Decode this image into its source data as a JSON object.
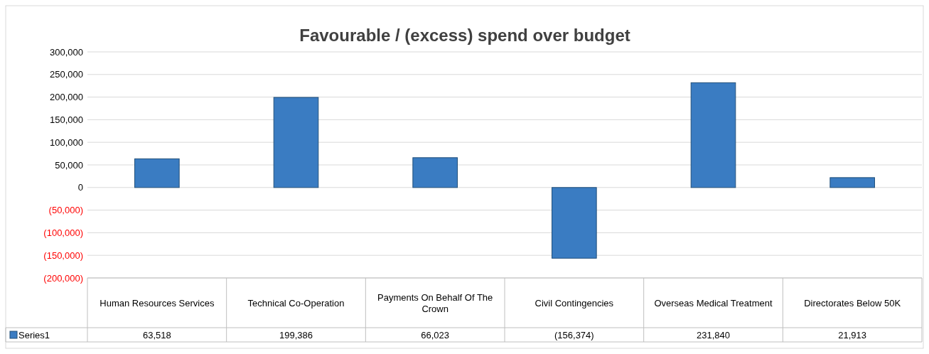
{
  "chart_data": {
    "type": "bar",
    "title": "Favourable / (excess) spend over budget",
    "categories": [
      "Human Resources Services",
      "Technical Co-Operation",
      "Payments On Behalf Of The Crown",
      "Civil Contingencies",
      "Overseas Medical Treatment",
      "Directorates Below 50K"
    ],
    "series": [
      {
        "name": "Series1",
        "color": "#3a7cc2",
        "values": [
          63518,
          199386,
          66023,
          -156374,
          231840,
          21913
        ],
        "value_labels": [
          "63,518",
          "199,386",
          "66,023",
          "(156,374)",
          "231,840",
          "21,913"
        ]
      }
    ],
    "ylim": [
      -200000,
      300000
    ],
    "yticks": [
      {
        "value": -200000,
        "label": "(200,000)"
      },
      {
        "value": -150000,
        "label": "(150,000)"
      },
      {
        "value": -100000,
        "label": "(100,000)"
      },
      {
        "value": -50000,
        "label": "(50,000)"
      },
      0,
      {
        "value": 50000,
        "label": "50,000"
      },
      {
        "value": 100000,
        "label": "100,000"
      },
      {
        "value": 150000,
        "label": "150,000"
      },
      {
        "value": 200000,
        "label": "200,000"
      },
      {
        "value": 250000,
        "label": "250,000"
      },
      {
        "value": 300000,
        "label": "300,000"
      }
    ],
    "grid": "y",
    "legend": "bottom"
  }
}
